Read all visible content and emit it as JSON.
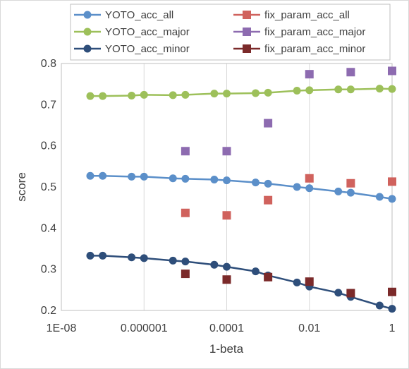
{
  "chart_data": {
    "type": "scatter",
    "xlabel": "1-beta",
    "ylabel": "score",
    "xscale": "log",
    "xlim": [
      1e-08,
      1
    ],
    "ylim": [
      0.2,
      0.8
    ],
    "x_ticks": [
      1e-08,
      1e-06,
      0.0001,
      0.01,
      1
    ],
    "x_tick_labels": [
      "1E-08",
      "0.000001",
      "0.0001",
      "0.01",
      "1"
    ],
    "y_ticks": [
      0.2,
      0.3,
      0.4,
      0.5,
      0.6,
      0.7,
      0.8
    ],
    "y_tick_labels": [
      "0.2",
      "0.3",
      "0.4",
      "0.5",
      "0.6",
      "0.7",
      "0.8"
    ],
    "grid": "vertical",
    "legend_position": "top",
    "series": [
      {
        "name": "YOTO_acc_all",
        "color": "#5b8fc9",
        "marker": "circle",
        "line": true,
        "x": [
          5e-08,
          1e-07,
          5e-07,
          1e-06,
          5e-06,
          1e-05,
          5e-05,
          0.0001,
          0.0005,
          0.001,
          0.005,
          0.01,
          0.05,
          0.1,
          0.5,
          1
        ],
        "y": [
          0.527,
          0.527,
          0.525,
          0.525,
          0.521,
          0.52,
          0.518,
          0.516,
          0.511,
          0.508,
          0.5,
          0.497,
          0.489,
          0.486,
          0.476,
          0.471
        ]
      },
      {
        "name": "YOTO_acc_major",
        "color": "#9dc05a",
        "marker": "circle",
        "line": true,
        "x": [
          5e-08,
          1e-07,
          5e-07,
          1e-06,
          5e-06,
          1e-05,
          5e-05,
          0.0001,
          0.0005,
          0.001,
          0.005,
          0.01,
          0.05,
          0.1,
          0.5,
          1
        ],
        "y": [
          0.721,
          0.721,
          0.722,
          0.724,
          0.723,
          0.724,
          0.727,
          0.727,
          0.728,
          0.729,
          0.734,
          0.735,
          0.737,
          0.737,
          0.739,
          0.738
        ]
      },
      {
        "name": "YOTO_acc_minor",
        "color": "#2e4e7a",
        "marker": "circle",
        "line": true,
        "x": [
          5e-08,
          1e-07,
          5e-07,
          1e-06,
          5e-06,
          1e-05,
          5e-05,
          0.0001,
          0.0005,
          0.001,
          0.005,
          0.01,
          0.05,
          0.1,
          0.5,
          1
        ],
        "y": [
          0.333,
          0.333,
          0.329,
          0.327,
          0.321,
          0.319,
          0.311,
          0.306,
          0.295,
          0.285,
          0.268,
          0.258,
          0.243,
          0.233,
          0.212,
          0.204
        ]
      },
      {
        "name": "fix_param_acc_all",
        "color": "#d0625d",
        "marker": "square",
        "line": false,
        "x": [
          1e-05,
          0.0001,
          0.001,
          0.01,
          0.1,
          1
        ],
        "y": [
          0.437,
          0.431,
          0.468,
          0.521,
          0.509,
          0.513
        ]
      },
      {
        "name": "fix_param_acc_major",
        "color": "#8d6bb0",
        "marker": "square",
        "line": false,
        "x": [
          1e-05,
          0.0001,
          0.001,
          0.01,
          0.1,
          1
        ],
        "y": [
          0.587,
          0.587,
          0.655,
          0.774,
          0.779,
          0.782
        ]
      },
      {
        "name": "fix_param_acc_minor",
        "color": "#7b2a2a",
        "marker": "square",
        "line": false,
        "x": [
          1e-05,
          0.0001,
          0.001,
          0.01,
          0.1,
          1
        ],
        "y": [
          0.289,
          0.275,
          0.281,
          0.27,
          0.242,
          0.245
        ]
      }
    ]
  }
}
